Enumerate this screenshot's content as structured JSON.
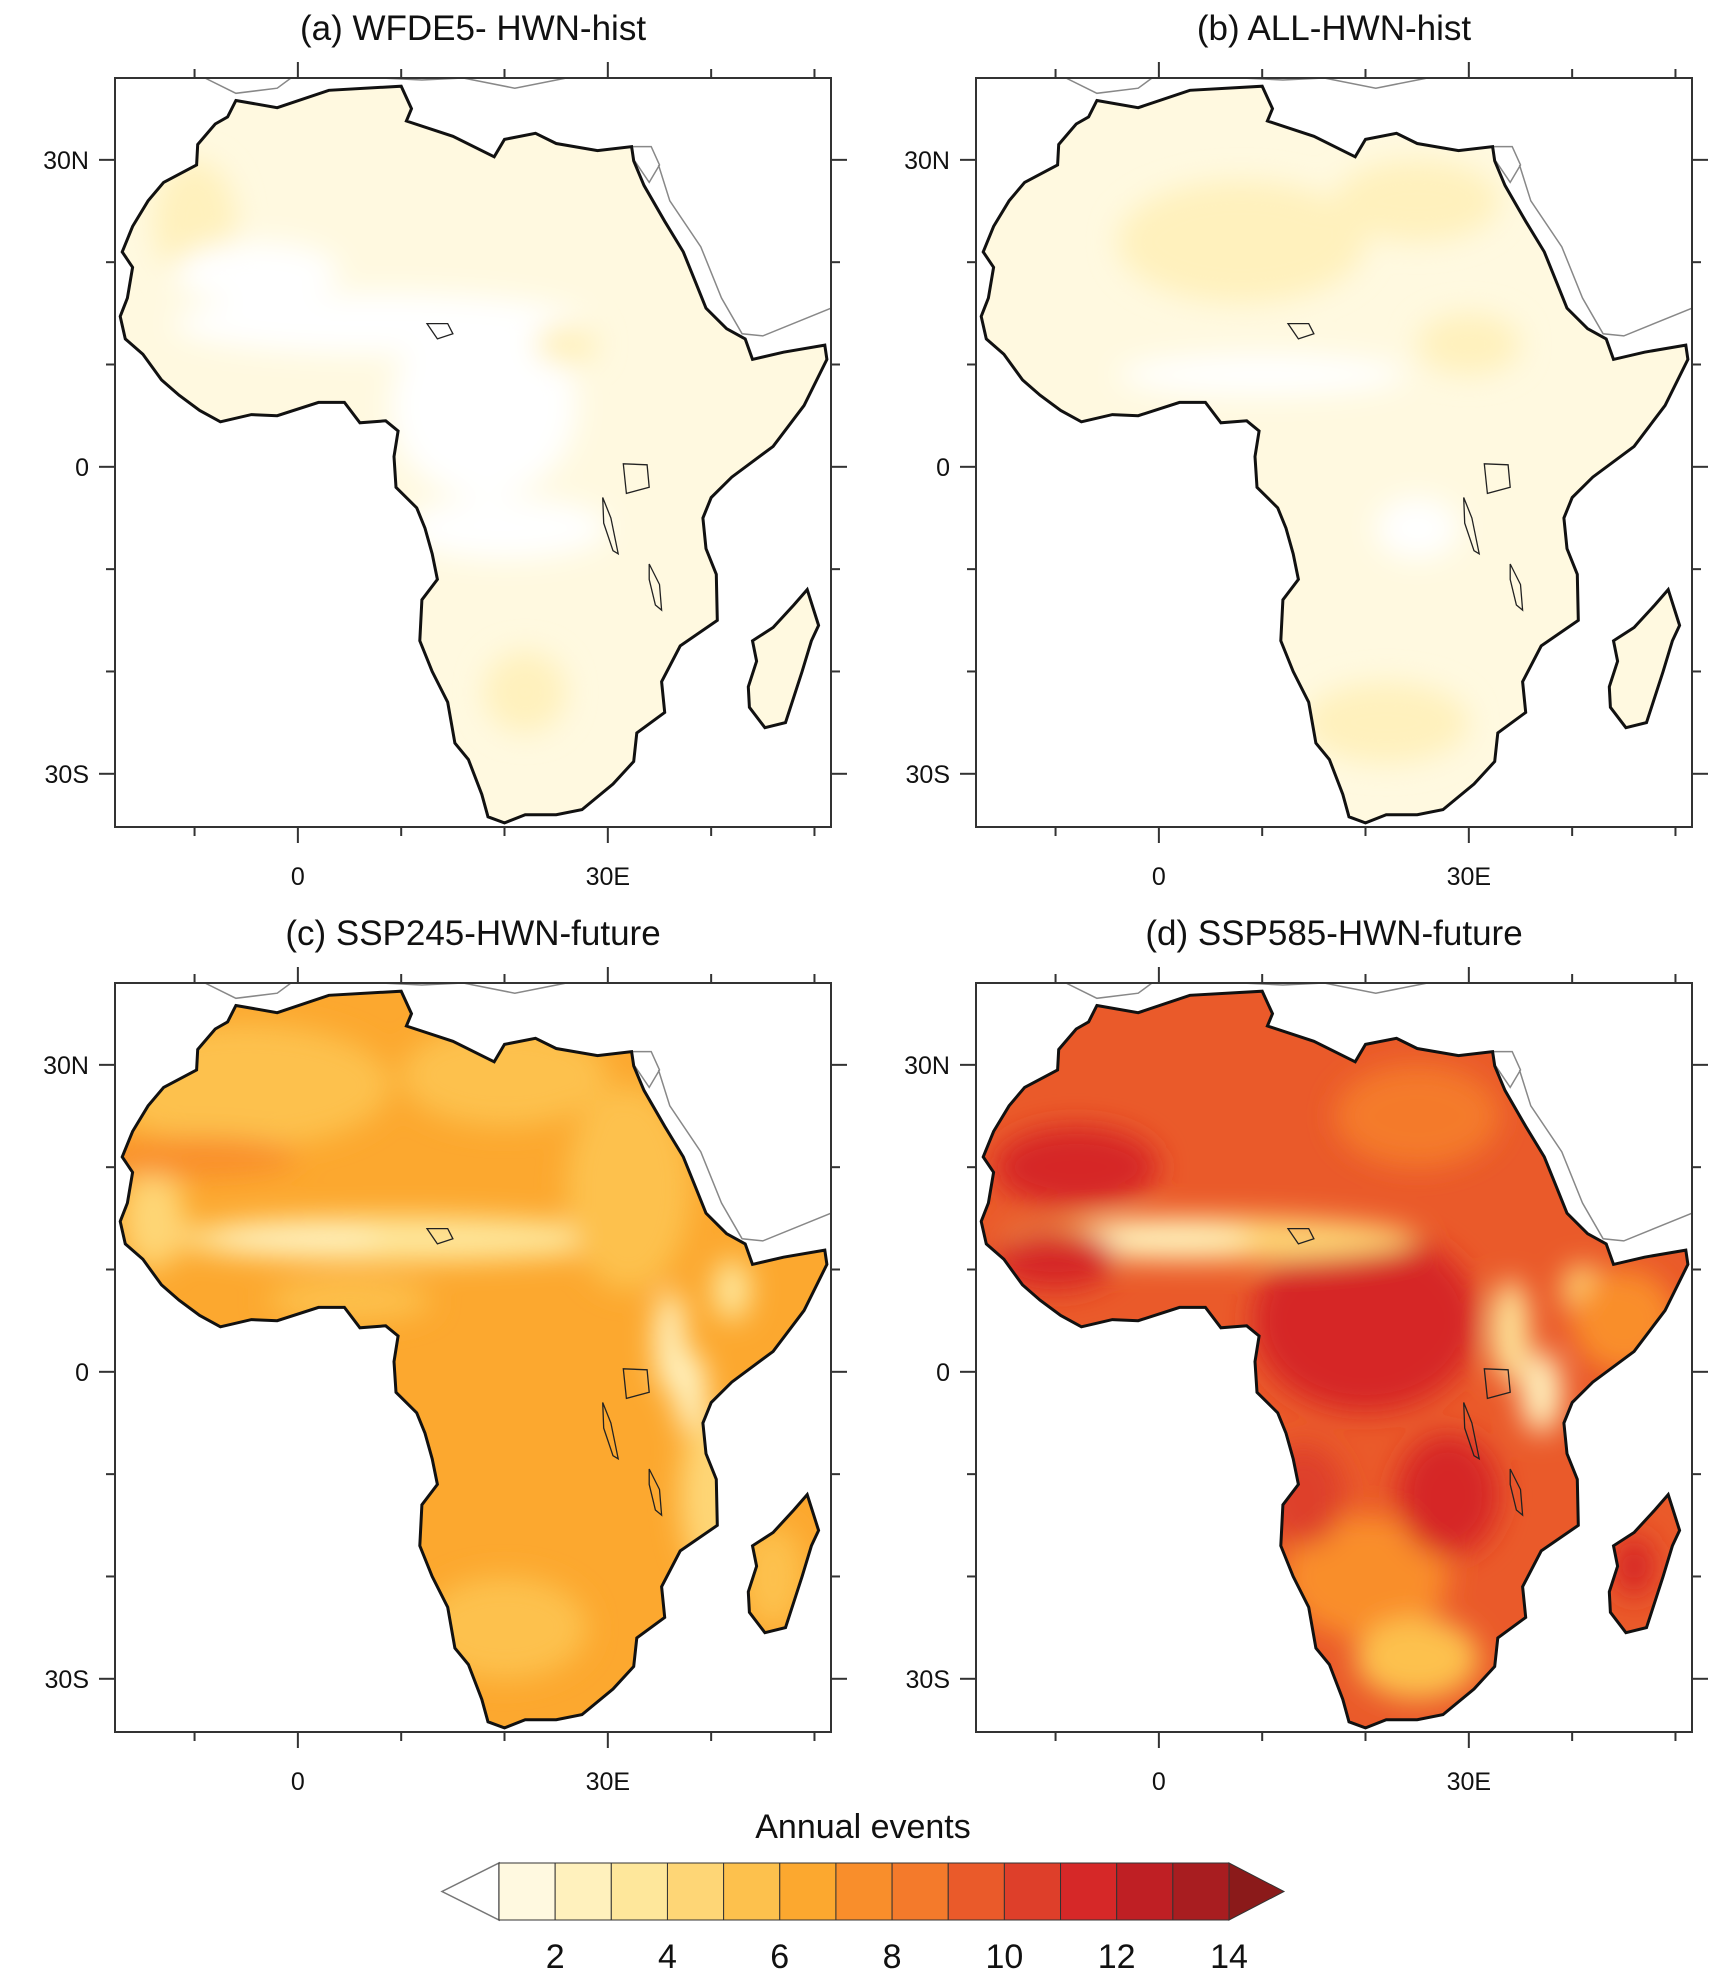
{
  "panels": [
    {
      "id": "a",
      "title": "(a) WFDE5- HWN-hist"
    },
    {
      "id": "b",
      "title": "(b) ALL-HWN-hist"
    },
    {
      "id": "c",
      "title": "(c) SSP245-HWN-future"
    },
    {
      "id": "d",
      "title": "(d) SSP585-HWN-future"
    }
  ],
  "axes": {
    "lat_labels": [
      "30N",
      "0",
      "30S"
    ],
    "lon_labels": [
      "0",
      "30E"
    ],
    "lon_range": [
      -18,
      52
    ],
    "lat_range": [
      -35,
      38
    ]
  },
  "colorbar": {
    "title": "Annual events",
    "labels": [
      "2",
      "4",
      "6",
      "8",
      "10",
      "12",
      "14"
    ],
    "levels": [
      1,
      2,
      3,
      4,
      5,
      6,
      7,
      8,
      9,
      10,
      11,
      12,
      13,
      14
    ],
    "below_color": "#ffffff",
    "colors": [
      "#fff9e0",
      "#fff1bd",
      "#fee79b",
      "#fed676",
      "#fdc14d",
      "#fca82f",
      "#f98e2b",
      "#f47a2b",
      "#ea5a2a",
      "#de3f2a",
      "#d62828",
      "#bf1f24",
      "#a81d20"
    ],
    "above_color": "#8b1a1a"
  }
}
